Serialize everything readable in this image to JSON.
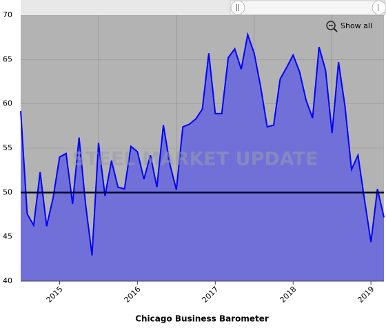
{
  "chart_data": {
    "type": "area",
    "title": "Chicago Business Barometer",
    "watermark": "STEEL MARKET UPDATE",
    "button": "Show all",
    "categories": [
      null,
      null,
      null,
      null,
      null,
      null,
      "2015",
      null,
      null,
      null,
      null,
      null,
      null,
      null,
      null,
      null,
      null,
      null,
      "2016",
      null,
      null,
      null,
      null,
      null,
      null,
      null,
      null,
      null,
      null,
      null,
      "2017",
      null,
      null,
      null,
      null,
      null,
      null,
      null,
      null,
      null,
      null,
      null,
      "2018",
      null,
      null,
      null,
      null,
      null,
      null,
      null,
      null,
      null,
      null,
      null,
      "2019",
      null,
      null
    ],
    "series": [
      {
        "name": "Chicago Business Barometer",
        "color": "#0000ff",
        "fill": "#7070d8",
        "values": [
          59.2,
          47.6,
          46.3,
          52.3,
          46.2,
          49.4,
          54.0,
          54.4,
          48.7,
          56.2,
          48.7,
          42.9,
          55.6,
          49.6,
          53.6,
          50.6,
          50.4,
          55.2,
          54.6,
          51.5,
          54.2,
          50.6,
          57.6,
          53.2,
          50.3,
          57.4,
          57.7,
          58.3,
          59.4,
          65.7,
          58.9,
          58.9,
          65.2,
          66.2,
          63.9,
          67.8,
          65.7,
          61.9,
          57.4,
          57.6,
          62.8,
          64.1,
          65.5,
          63.6,
          60.4,
          58.4,
          66.4,
          63.8,
          56.7,
          64.7,
          59.7,
          52.6,
          54.2,
          49.2,
          44.4,
          50.4,
          47.2
        ]
      }
    ],
    "reference_line": 50,
    "ylim": [
      40,
      70
    ],
    "yticks": [
      40,
      45,
      50,
      55,
      60,
      65,
      70
    ],
    "grid": true
  }
}
